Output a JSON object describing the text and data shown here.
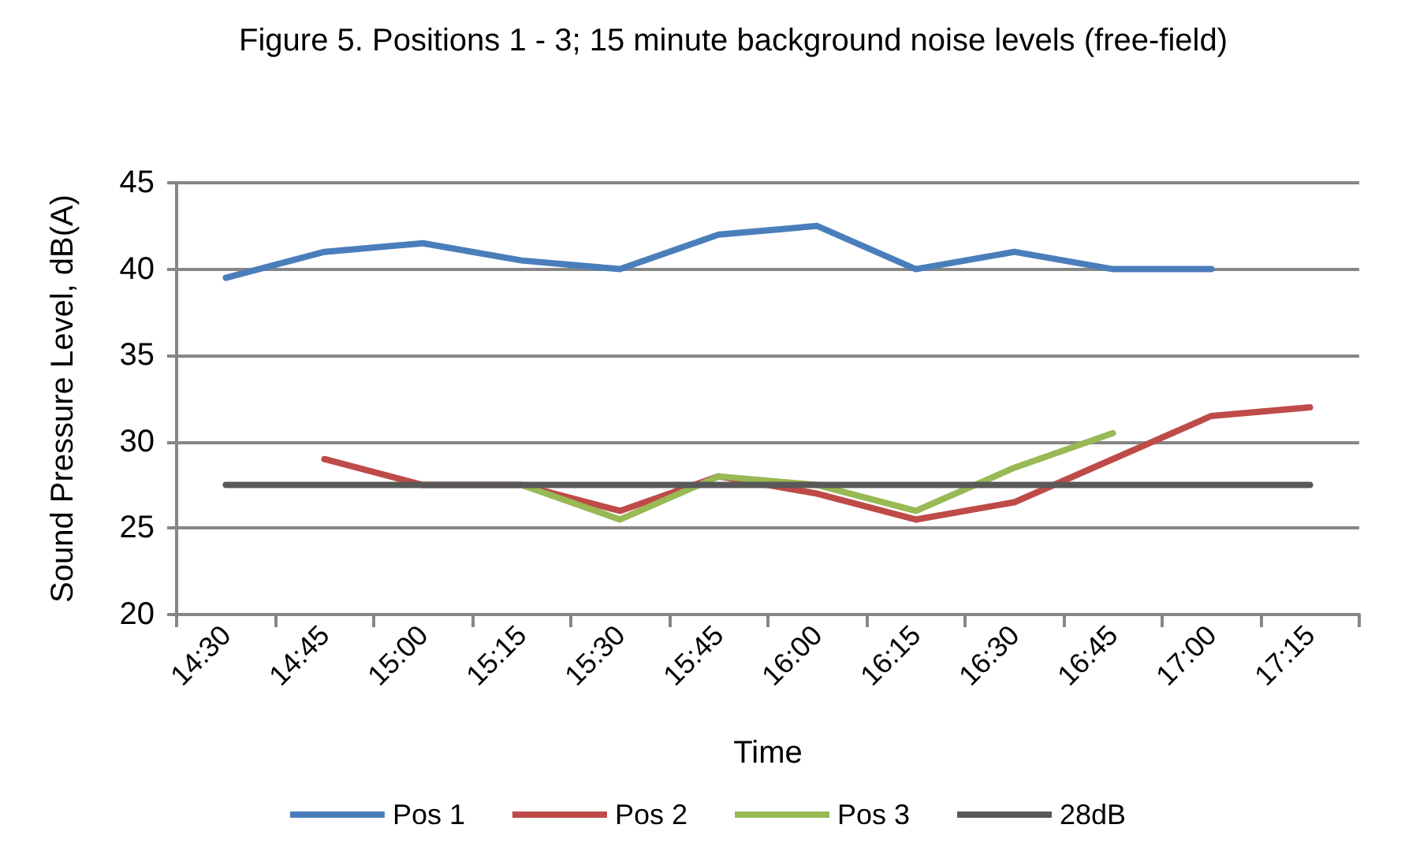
{
  "chart_data": {
    "type": "line",
    "title": "Figure 5. Positions 1 - 3; 15 minute background noise levels (free-field)",
    "xlabel": "Time",
    "ylabel": "Sound Pressure Level, dB(A)",
    "categories": [
      "14:30",
      "14:45",
      "15:00",
      "15:15",
      "15:30",
      "15:45",
      "16:00",
      "16:15",
      "16:30",
      "16:45",
      "17:00",
      "17:15"
    ],
    "series": [
      {
        "name": "Pos 1",
        "color": "#4a7ebb",
        "values": [
          39.5,
          41,
          41.5,
          40.5,
          40,
          42,
          42.5,
          40,
          41,
          40,
          40,
          null
        ]
      },
      {
        "name": "Pos 2",
        "color": "#be4b48",
        "values": [
          null,
          29,
          27.5,
          27.5,
          26,
          28,
          27,
          25.5,
          26.5,
          29,
          31.5,
          32
        ]
      },
      {
        "name": "Pos 3",
        "color": "#98b954",
        "values": [
          null,
          null,
          null,
          27.5,
          25.5,
          28,
          27.5,
          26,
          28.5,
          30.5,
          null,
          null
        ]
      },
      {
        "name": "28dB",
        "color": "#595959",
        "values": [
          27.5,
          27.5,
          27.5,
          27.5,
          27.5,
          27.5,
          27.5,
          27.5,
          27.5,
          27.5,
          27.5,
          27.5
        ]
      }
    ],
    "ylim": [
      20,
      45
    ],
    "yticks": [
      20,
      25,
      30,
      35,
      40,
      45
    ],
    "grid": "y",
    "legend": "bottom",
    "marker": "none",
    "line_style": "solid"
  }
}
